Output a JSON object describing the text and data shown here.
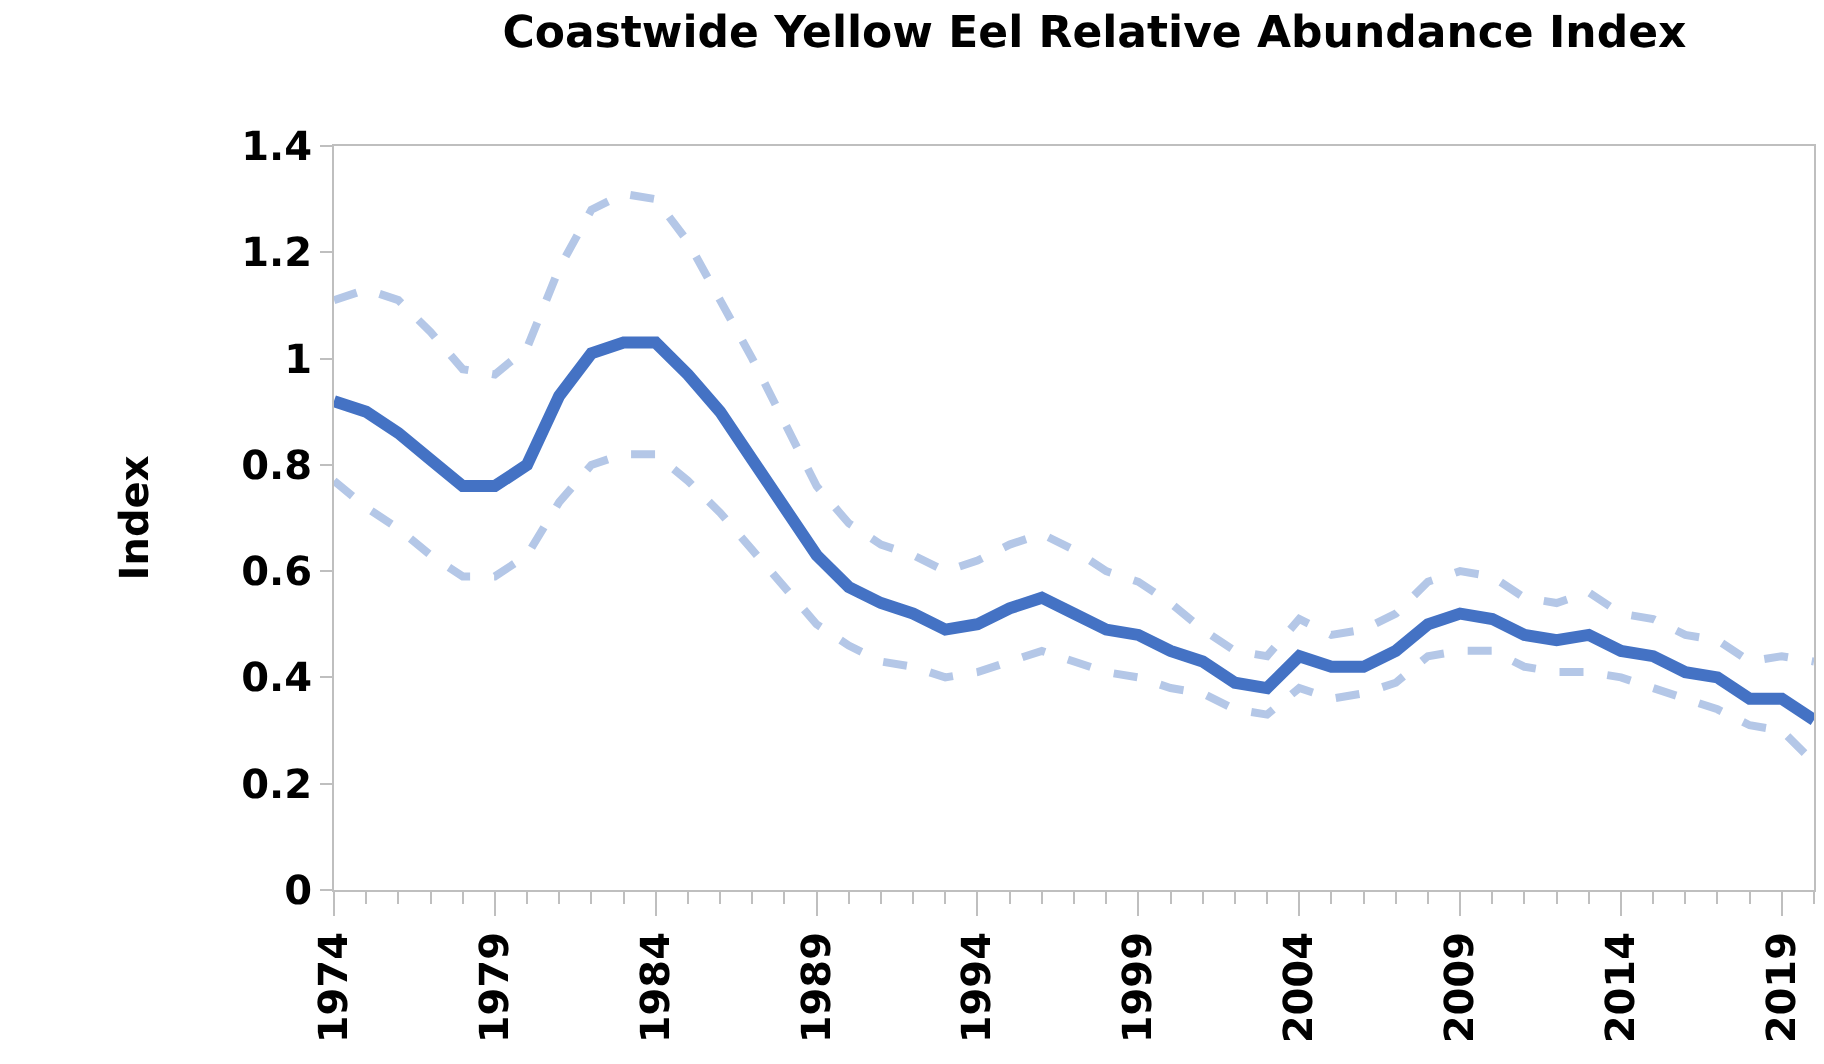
{
  "chart_data": {
    "type": "line",
    "title": "Coastwide Yellow Eel Relative Abundance Index",
    "ylabel": "Index",
    "x": [
      1974,
      1975,
      1976,
      1977,
      1978,
      1979,
      1980,
      1981,
      1982,
      1983,
      1984,
      1985,
      1986,
      1987,
      1988,
      1989,
      1990,
      1991,
      1992,
      1993,
      1994,
      1995,
      1996,
      1997,
      1998,
      1999,
      2000,
      2001,
      2002,
      2003,
      2004,
      2005,
      2006,
      2007,
      2008,
      2009,
      2010,
      2011,
      2012,
      2013,
      2014,
      2015,
      2016,
      2017,
      2018,
      2019,
      2020
    ],
    "series": [
      {
        "color": "#b4c7e7",
        "line_style": "dashed",
        "values": [
          1.11,
          1.13,
          1.11,
          1.05,
          0.98,
          0.97,
          1.02,
          1.17,
          1.28,
          1.31,
          1.3,
          1.22,
          1.11,
          1.0,
          0.88,
          0.76,
          0.69,
          0.65,
          0.63,
          0.6,
          0.62,
          0.65,
          0.67,
          0.64,
          0.6,
          0.58,
          0.54,
          0.49,
          0.45,
          0.44,
          0.51,
          0.48,
          0.49,
          0.52,
          0.58,
          0.6,
          0.59,
          0.55,
          0.54,
          0.56,
          0.52,
          0.51,
          0.48,
          0.47,
          0.43,
          0.44,
          0.43
        ]
      },
      {
        "color": "#b4c7e7",
        "line_style": "dashed",
        "values": [
          0.77,
          0.72,
          0.68,
          0.63,
          0.59,
          0.59,
          0.63,
          0.73,
          0.8,
          0.82,
          0.82,
          0.77,
          0.71,
          0.64,
          0.57,
          0.5,
          0.46,
          0.43,
          0.42,
          0.4,
          0.41,
          0.43,
          0.45,
          0.43,
          0.41,
          0.4,
          0.38,
          0.37,
          0.34,
          0.33,
          0.38,
          0.36,
          0.37,
          0.39,
          0.44,
          0.45,
          0.45,
          0.42,
          0.41,
          0.41,
          0.4,
          0.38,
          0.36,
          0.34,
          0.31,
          0.3,
          0.24
        ]
      },
      {
        "color": "#4472c4",
        "line_style": "solid",
        "values": [
          0.92,
          0.9,
          0.86,
          0.81,
          0.76,
          0.76,
          0.8,
          0.93,
          1.01,
          1.03,
          1.03,
          0.97,
          0.9,
          0.81,
          0.72,
          0.63,
          0.57,
          0.54,
          0.52,
          0.49,
          0.5,
          0.53,
          0.55,
          0.52,
          0.49,
          0.48,
          0.45,
          0.43,
          0.39,
          0.38,
          0.44,
          0.42,
          0.42,
          0.45,
          0.5,
          0.52,
          0.51,
          0.48,
          0.47,
          0.48,
          0.45,
          0.44,
          0.41,
          0.4,
          0.36,
          0.36,
          0.32
        ]
      }
    ],
    "xlim": [
      1974,
      2020
    ],
    "xticks": [
      1974,
      1979,
      1984,
      1989,
      1994,
      1999,
      2004,
      2009,
      2014,
      2019
    ],
    "ylim": [
      0,
      1.4
    ],
    "yticks": [
      {
        "value": 0,
        "label": "0"
      },
      {
        "value": 0.2,
        "label": "0.2"
      },
      {
        "value": 0.4,
        "label": "0.4"
      },
      {
        "value": 0.6,
        "label": "0.6"
      },
      {
        "value": 0.8,
        "label": "0.8"
      },
      {
        "value": 1,
        "label": "1"
      },
      {
        "value": 1.2,
        "label": "1.2"
      },
      {
        "value": 1.4,
        "label": "1.4"
      }
    ],
    "marker": "none"
  }
}
